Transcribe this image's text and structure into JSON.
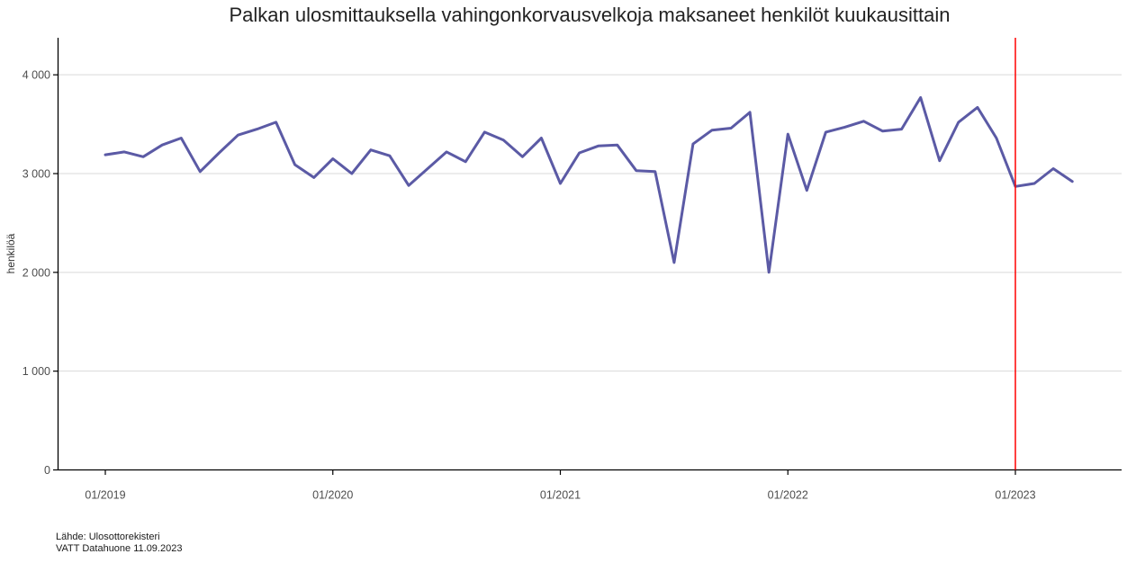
{
  "footer": {
    "line1": "Lähde: Ulosottorekisteri",
    "line2": "VATT Datahuone 11.09.2023"
  },
  "chart_data": {
    "type": "line",
    "title": "Palkan ulosmittauksella vahingonkorvausvelkoja maksaneet henkilöt kuukausittain",
    "xlabel": "",
    "ylabel": "henkilöä",
    "ylim": [
      0,
      4375
    ],
    "grid": "horizontal",
    "legend": "none",
    "y_tick_values": [
      0,
      1000,
      2000,
      3000,
      4000
    ],
    "y_tick_labels": [
      "0",
      "1 000",
      "2 000",
      "3 000",
      "4 000"
    ],
    "x_tick_indices": [
      0,
      12,
      24,
      36,
      48
    ],
    "x_tick_labels": [
      "01/2019",
      "01/2020",
      "01/2021",
      "01/2022",
      "01/2023"
    ],
    "months": [
      "01/2019",
      "02/2019",
      "03/2019",
      "04/2019",
      "05/2019",
      "06/2019",
      "07/2019",
      "08/2019",
      "09/2019",
      "10/2019",
      "11/2019",
      "12/2019",
      "01/2020",
      "02/2020",
      "03/2020",
      "04/2020",
      "05/2020",
      "06/2020",
      "07/2020",
      "08/2020",
      "09/2020",
      "10/2020",
      "11/2020",
      "12/2020",
      "01/2021",
      "02/2021",
      "03/2021",
      "04/2021",
      "05/2021",
      "06/2021",
      "07/2021",
      "08/2021",
      "09/2021",
      "10/2021",
      "11/2021",
      "12/2021",
      "01/2022",
      "02/2022",
      "03/2022",
      "04/2022",
      "05/2022",
      "06/2022",
      "07/2022",
      "08/2022",
      "09/2022",
      "10/2022",
      "11/2022",
      "12/2022",
      "01/2023",
      "02/2023",
      "03/2023",
      "04/2023"
    ],
    "series": [
      {
        "name": "henkilöt",
        "color": "#5b5aa5",
        "values": [
          3190,
          3220,
          3170,
          3290,
          3360,
          3020,
          3210,
          3390,
          3450,
          3520,
          3090,
          2960,
          3150,
          3000,
          3240,
          3180,
          2880,
          3050,
          3220,
          3120,
          3420,
          3340,
          3170,
          3360,
          2900,
          3210,
          3280,
          3290,
          3030,
          3020,
          2100,
          3300,
          3440,
          3460,
          3620,
          2000,
          3400,
          2830,
          3420,
          3470,
          3530,
          3430,
          3450,
          3770,
          3130,
          3520,
          3670,
          3360,
          2870,
          2900,
          3050,
          2920
        ]
      }
    ],
    "vline": {
      "at_month": "01/2023",
      "index": 48,
      "color": "#ff0000"
    },
    "colors": {
      "line": "#5b5aa5",
      "vline": "#ff0000",
      "grid": "#d9d9d9",
      "axis": "#000000",
      "tick_text": "#4d4d4d"
    }
  }
}
